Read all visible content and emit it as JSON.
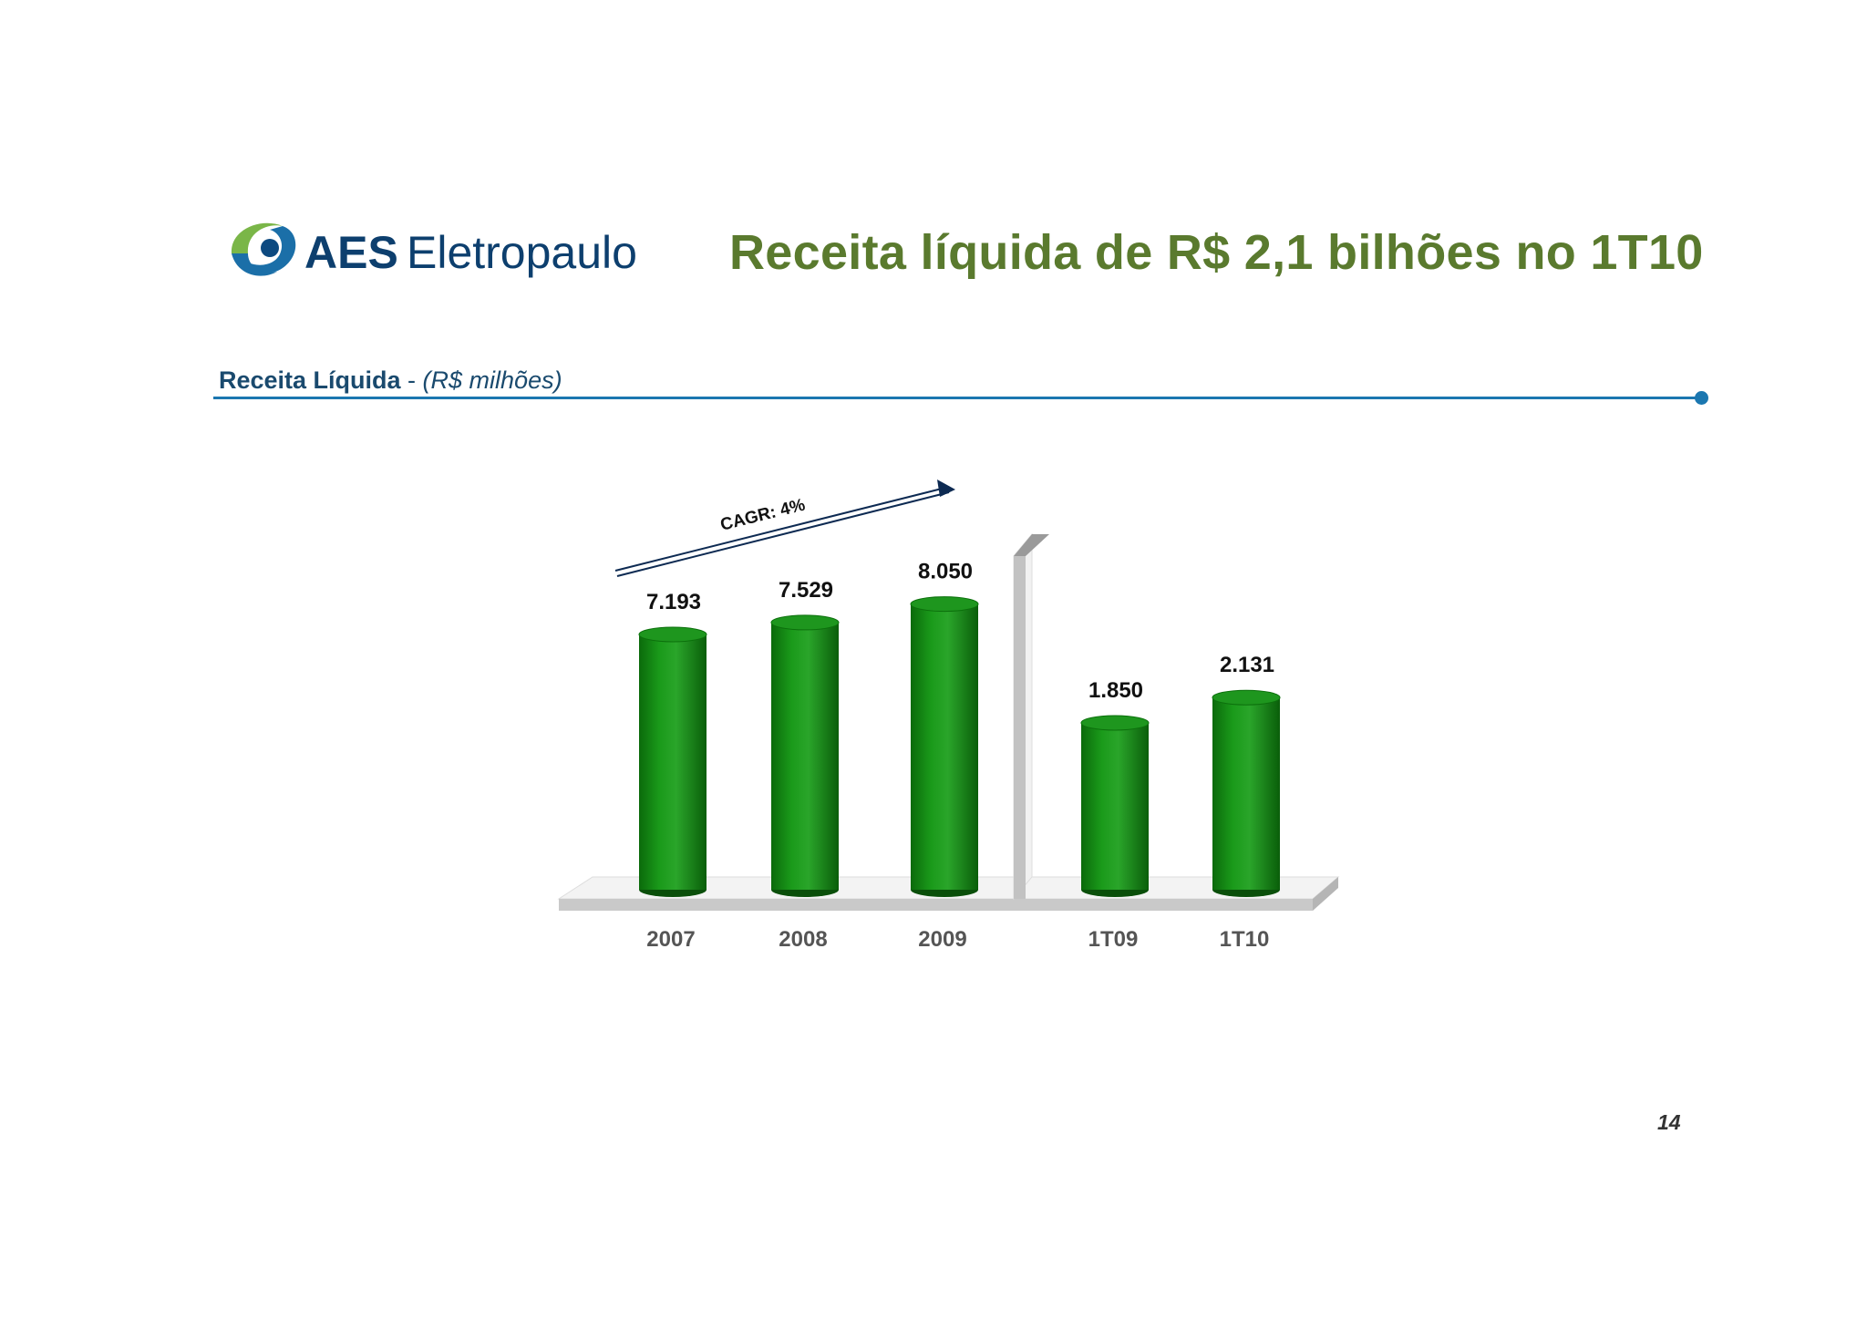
{
  "brand": {
    "name": "AES Eletropaulo",
    "name_bold": "AES",
    "name_light": "Eletropaulo"
  },
  "slide_title": "Receita líquida de R$ 2,1 bilhões no 1T10",
  "section": {
    "label": "Receita Líquida",
    "separator": " - ",
    "unit": "(R$ milhões)"
  },
  "page_number": "14",
  "colors": {
    "title": "#5a7a2e",
    "accent": "#1b77b0",
    "bar": "#138a13",
    "header_text": "#1a4a6e"
  },
  "chart_data": {
    "type": "bar",
    "categories": [
      "2007",
      "2008",
      "2009",
      "1T09",
      "1T10"
    ],
    "values": [
      7193,
      7529,
      8050,
      1850,
      2131
    ],
    "value_labels": [
      "7.193",
      "7.529",
      "8.050",
      "1.850",
      "2.131"
    ],
    "annotations": [
      "CAGR: 4%"
    ],
    "title": "Receita Líquida - (R$ milhões)",
    "xlabel": "",
    "ylabel": "",
    "grid": false
  }
}
